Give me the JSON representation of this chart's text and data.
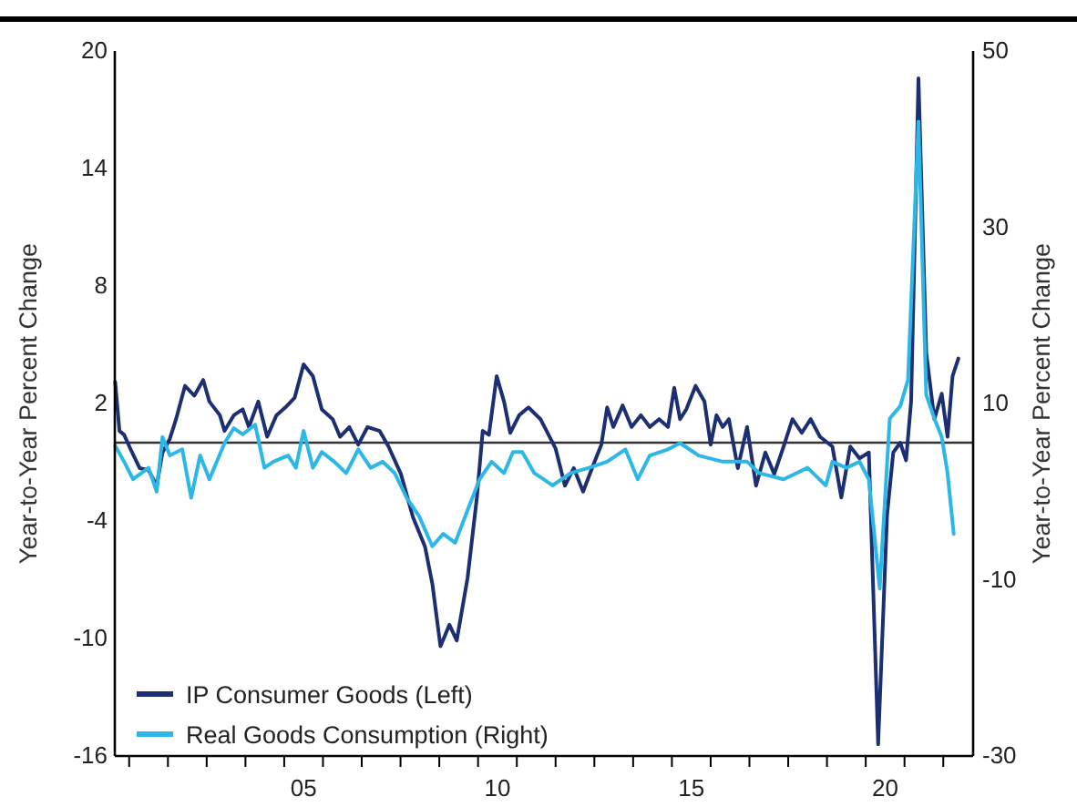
{
  "chart_data": {
    "type": "line",
    "ylabel": "Year-to-Year Percent Change",
    "y2label": "Year-to-Year Percent Change",
    "xlim": [
      0.13,
      22.27
    ],
    "xticks": [
      {
        "value": 0.5,
        "label": null
      },
      {
        "value": 1.5,
        "label": null
      },
      {
        "value": 2.5,
        "label": null
      },
      {
        "value": 3.5,
        "label": null
      },
      {
        "value": 4.5,
        "label": null
      },
      {
        "value": 5,
        "label": "05"
      },
      {
        "value": 5.5,
        "label": null
      },
      {
        "value": 6.5,
        "label": null
      },
      {
        "value": 7.5,
        "label": null
      },
      {
        "value": 8.5,
        "label": null
      },
      {
        "value": 9.5,
        "label": null
      },
      10,
      {
        "value": 10.5,
        "label": null
      },
      {
        "value": 11.5,
        "label": null
      },
      {
        "value": 12.5,
        "label": null
      },
      {
        "value": 13.5,
        "label": null
      },
      {
        "value": 14.5,
        "label": null
      },
      15,
      {
        "value": 15.5,
        "label": null
      },
      {
        "value": 16.5,
        "label": null
      },
      {
        "value": 17.5,
        "label": null
      },
      {
        "value": 18.5,
        "label": null
      },
      {
        "value": 19.5,
        "label": null
      },
      20,
      {
        "value": 20.5,
        "label": null
      },
      {
        "value": 21.5,
        "label": null
      }
    ],
    "ylim": [
      -16,
      20
    ],
    "yticks": [
      -16,
      -10,
      -4,
      2,
      8,
      14,
      20
    ],
    "y2lim": [
      -30,
      50
    ],
    "y2ticks": [
      -30,
      -10,
      10,
      30,
      50
    ],
    "legend": "bottom left",
    "ref_lines": [
      {
        "axis": "y",
        "value": 0,
        "color": "#333333"
      }
    ],
    "series": [
      {
        "name": "IP Consumer Goods (Left)",
        "color": "#1b2f72",
        "x": [
          0.14,
          0.25,
          0.37,
          0.53,
          0.77,
          1.0,
          1.21,
          1.36,
          1.55,
          1.71,
          1.94,
          2.18,
          2.41,
          2.57,
          2.84,
          2.96,
          3.2,
          3.43,
          3.59,
          3.83,
          4.06,
          4.3,
          4.53,
          4.77,
          5.0,
          5.24,
          5.47,
          5.75,
          5.94,
          6.18,
          6.41,
          6.65,
          6.96,
          7.19,
          7.51,
          7.82,
          8.13,
          8.32,
          8.53,
          8.76,
          8.95,
          9.23,
          9.47,
          9.62,
          9.78,
          9.98,
          10.17,
          10.33,
          10.56,
          10.8,
          11.11,
          11.5,
          11.74,
          11.97,
          12.21,
          12.44,
          12.68,
          12.83,
          12.99,
          13.23,
          13.46,
          13.7,
          13.93,
          14.17,
          14.4,
          14.56,
          14.71,
          14.87,
          15.11,
          15.34,
          15.5,
          15.65,
          15.81,
          15.97,
          16.2,
          16.44,
          16.67,
          16.91,
          17.14,
          17.38,
          17.61,
          17.85,
          18.08,
          18.32,
          18.64,
          18.87,
          19.1,
          19.34,
          19.58,
          19.82,
          20.05,
          20.21,
          20.39,
          20.54,
          20.67,
          20.86,
          21.06,
          21.27,
          21.46,
          21.61,
          21.74,
          21.89
        ],
        "values": [
          3.1,
          0.6,
          0.4,
          -0.3,
          -1.3,
          -1.4,
          -2.2,
          -0.5,
          0.2,
          1.2,
          2.9,
          2.4,
          3.2,
          2.1,
          1.4,
          0.6,
          1.4,
          1.7,
          0.8,
          2.1,
          0.3,
          1.4,
          1.8,
          2.3,
          4.0,
          3.4,
          1.7,
          1.2,
          0.3,
          0.8,
          -0.1,
          0.8,
          0.6,
          -0.2,
          -1.6,
          -3.8,
          -5.3,
          -7.2,
          -10.4,
          -9.3,
          -10.1,
          -6.9,
          -2.8,
          0.6,
          0.4,
          3.4,
          2.1,
          0.5,
          1.4,
          1.8,
          1.2,
          -0.3,
          -2.2,
          -1.3,
          -2.5,
          -1.3,
          -0.1,
          1.8,
          0.8,
          1.9,
          0.8,
          1.4,
          0.8,
          1.2,
          0.8,
          2.8,
          1.2,
          1.7,
          2.9,
          2.1,
          -0.1,
          1.4,
          0.8,
          1.2,
          -1.3,
          0.8,
          -2.2,
          -0.5,
          -1.6,
          -0.2,
          1.2,
          0.5,
          1.2,
          0.3,
          -0.2,
          -2.8,
          -0.2,
          -0.8,
          -0.5,
          -15.4,
          -3.7,
          -0.5,
          0.0,
          -0.9,
          2.1,
          18.6,
          4.6,
          1.2,
          2.5,
          0.3,
          3.4,
          4.3
        ]
      },
      {
        "name": "Real Goods Consumption (Right)",
        "color": "#2cb7e6",
        "axis": "y2",
        "x": [
          0.14,
          0.37,
          0.6,
          1.0,
          1.21,
          1.36,
          1.55,
          1.87,
          2.1,
          2.33,
          2.57,
          2.96,
          3.2,
          3.43,
          3.75,
          3.99,
          4.22,
          4.6,
          4.8,
          5.0,
          5.24,
          5.47,
          5.79,
          6.1,
          6.41,
          6.73,
          7.04,
          7.35,
          7.66,
          7.98,
          8.32,
          8.6,
          8.91,
          9.23,
          9.54,
          9.85,
          10.17,
          10.4,
          10.64,
          10.95,
          11.19,
          11.42,
          11.89,
          12.36,
          12.83,
          13.3,
          13.62,
          13.93,
          14.4,
          14.71,
          15.19,
          15.81,
          16.44,
          16.75,
          17.38,
          18.0,
          18.47,
          18.64,
          19.0,
          19.34,
          19.58,
          19.86,
          20.12,
          20.39,
          20.59,
          20.86,
          21.06,
          21.27,
          21.46,
          21.61,
          21.77
        ],
        "values": [
          5.2,
          3.4,
          1.4,
          2.7,
          0.0,
          6.2,
          4.1,
          4.8,
          -0.7,
          4.1,
          1.4,
          5.5,
          7.2,
          6.5,
          7.6,
          2.7,
          3.4,
          4.1,
          2.7,
          6.9,
          2.7,
          4.5,
          3.4,
          2.1,
          4.8,
          2.7,
          3.4,
          2.1,
          -0.7,
          -2.8,
          -6.2,
          -4.8,
          -5.8,
          -2.1,
          1.4,
          3.4,
          2.1,
          4.5,
          4.5,
          2.1,
          1.4,
          0.7,
          2.1,
          2.7,
          3.4,
          4.8,
          1.4,
          4.1,
          4.8,
          5.5,
          4.1,
          3.4,
          3.4,
          2.1,
          1.4,
          2.7,
          0.7,
          3.4,
          2.7,
          3.4,
          1.4,
          -11.0,
          8.3,
          9.7,
          12.7,
          42.0,
          11.0,
          8.3,
          6.2,
          2.1,
          -4.8
        ]
      }
    ]
  }
}
